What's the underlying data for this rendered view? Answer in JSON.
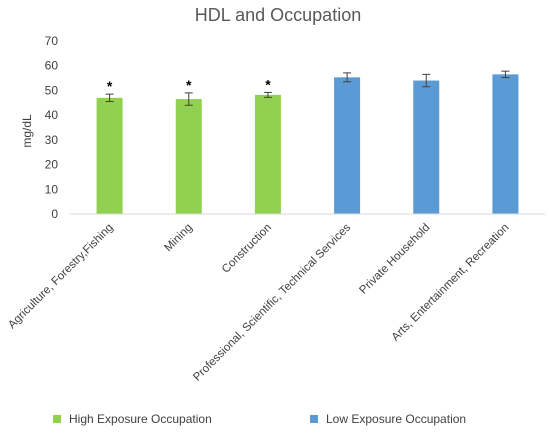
{
  "chart_data": {
    "type": "bar",
    "title": "HDL and Occupation",
    "xlabel": "",
    "ylabel": "mg/dL",
    "ylim": [
      0,
      70
    ],
    "yticks": [
      0,
      10,
      20,
      30,
      40,
      50,
      60,
      70
    ],
    "grid": false,
    "legend_position": "bottom",
    "categories": [
      "Agriculture, Forestry,Fishing",
      "Mining",
      "Construction",
      "Professional, Scientific, Technical Services",
      "Private Household",
      "Arts, Entertainment, Recreation"
    ],
    "values": [
      47.0,
      46.5,
      48.2,
      55.3,
      54.0,
      56.5
    ],
    "error": [
      1.5,
      2.5,
      1.0,
      1.8,
      2.5,
      1.3
    ],
    "significance_markers": [
      "*",
      "*",
      "*",
      "",
      "",
      ""
    ],
    "groups": [
      "high",
      "high",
      "high",
      "low",
      "low",
      "low"
    ],
    "legend": [
      {
        "key": "high",
        "label": "High Exposure Occupation",
        "color": "#92D050"
      },
      {
        "key": "low",
        "label": "Low Exposure Occupation",
        "color": "#5B9BD5"
      }
    ]
  }
}
